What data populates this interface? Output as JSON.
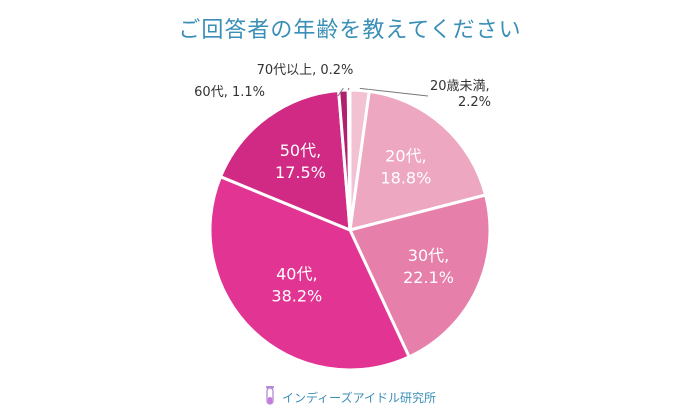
{
  "chart_data": {
    "type": "pie",
    "title": "ご回答者の年齢を教えてください",
    "slices": [
      {
        "label": "20歳未満",
        "label_text": "20歳未満,",
        "value_text": "2.2%",
        "value": 2.2,
        "color": "#f2c2d2"
      },
      {
        "label": "20代",
        "label_text": "20代,",
        "value_text": "18.8%",
        "value": 18.8,
        "color": "#eea7c0"
      },
      {
        "label": "30代",
        "label_text": "30代,",
        "value_text": "22.1%",
        "value": 22.1,
        "color": "#e77fab"
      },
      {
        "label": "40代",
        "label_text": "40代,",
        "value_text": "38.2%",
        "value": 38.2,
        "color": "#e23593"
      },
      {
        "label": "50代",
        "label_text": "50代,",
        "value_text": "17.5%",
        "value": 17.5,
        "color": "#d12a85"
      },
      {
        "label": "60代",
        "label_text": "60代,",
        "value_text": "1.1%",
        "value": 1.1,
        "color": "#b0206d"
      },
      {
        "label": "70代以上",
        "label_text": "70代以上,",
        "value_text": "0.2%",
        "value": 0.2,
        "color": "#8e1656"
      }
    ]
  },
  "footer": {
    "brand": "インディーズアイドル研究所",
    "icon": "test-tube-icon"
  }
}
